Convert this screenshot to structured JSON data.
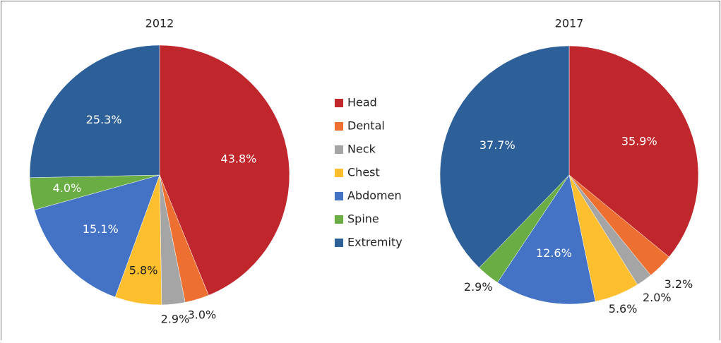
{
  "chart_data": {
    "type": "pie",
    "categories": [
      "Head",
      "Dental",
      "Neck",
      "Chest",
      "Abdomen",
      "Spine",
      "Extremity"
    ],
    "colors": [
      "#c0272d",
      "#ed7031",
      "#a5a5a5",
      "#fdbf2d",
      "#4472c4",
      "#6aad45",
      "#2d5f99"
    ],
    "series": [
      {
        "name": "2012",
        "values": [
          43.8,
          3.0,
          2.9,
          5.8,
          15.1,
          4.0,
          25.3
        ],
        "value_labels": [
          "43.8%",
          "3.0%",
          "2.9%",
          "5.8%",
          "15.1%",
          "4.0%",
          "25.3%"
        ]
      },
      {
        "name": "2017",
        "values": [
          35.9,
          3.2,
          2.0,
          5.6,
          12.6,
          2.9,
          37.7
        ],
        "value_labels": [
          "35.9%",
          "3.2%",
          "2.0%",
          "5.6%",
          "12.6%",
          "2.9%",
          "37.7%"
        ]
      }
    ],
    "legend": "center"
  }
}
